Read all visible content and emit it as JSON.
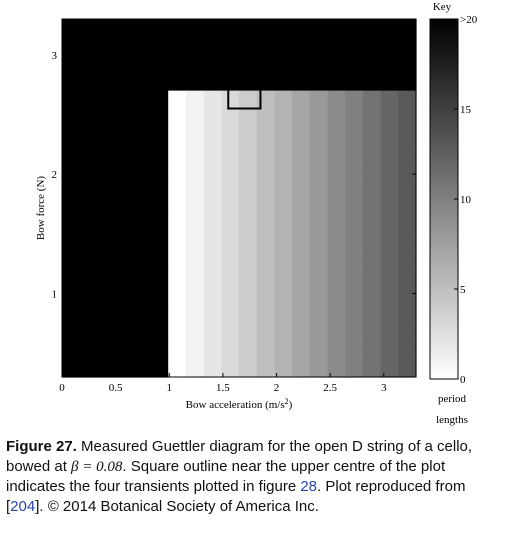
{
  "chart_data": {
    "type": "heatmap",
    "xlabel": "Bow acceleration (m/s",
    "xlabel_sup": "2",
    "xlabel_close": ")",
    "ylabel": "Bow force (N)",
    "xlim": [
      0,
      3.3
    ],
    "ylim": [
      0.3,
      3.3
    ],
    "xticks": [
      {
        "v": 0,
        "label": "0"
      },
      {
        "v": 0.5,
        "label": "0.5"
      },
      {
        "v": 1,
        "label": "1"
      },
      {
        "v": 1.5,
        "label": "1.5"
      },
      {
        "v": 2,
        "label": "2"
      },
      {
        "v": 2.5,
        "label": "2.5"
      },
      {
        "v": 3,
        "label": "3"
      }
    ],
    "yticks": [
      {
        "v": 1,
        "label": "1"
      },
      {
        "v": 2,
        "label": "2"
      },
      {
        "v": 3,
        "label": "3"
      }
    ],
    "colorbar": {
      "title": "Key",
      "range": [
        0,
        20
      ],
      "ticks": [
        {
          "v": 0,
          "label": "0"
        },
        {
          "v": 5,
          "label": "5"
        },
        {
          "v": 10,
          "label": "10"
        },
        {
          "v": 15,
          "label": "15"
        },
        {
          "v": 20,
          "label": ">20"
        }
      ],
      "label_line1": "period",
      "label_line2": "lengths"
    },
    "grid": {
      "rows": 20,
      "cols": 20
    },
    "values": [
      "....................",
      "....................",
      "....................",
      "....................",
      "......0123456789ABCD",
      "......0123456789ABCD",
      "......0123456789ABCD",
      "......0123456789ABCD",
      "......0123456789ABCD",
      "......0123456789ABCD",
      "......0123456789ABCD",
      "......0123456789ABCD",
      "......0123456789ABCD",
      "......0123456789ABCD",
      "......0123456789ABCD",
      "......0123456789ABCD",
      "......0123456789ABCD",
      "......0123456789ABCD",
      "......0123456789ABCD",
      "......0123456789ABCD"
    ],
    "highlight_box": {
      "x0": 1.55,
      "x1": 1.85,
      "y0": 2.55,
      "y1": 2.83
    }
  },
  "caption": {
    "fig_label": "Figure 27.",
    "text1": " Measured Guettler diagram for the open D string of a cello, bowed at ",
    "beta": "β = 0.08",
    "text2": ". Square outline near the upper centre of the plot indicates the four transients plotted in figure ",
    "ref1": "28",
    "text3": ". Plot reproduced from [",
    "ref2": "204",
    "text4": "]. © 2014 Botanical Society of America Inc."
  }
}
